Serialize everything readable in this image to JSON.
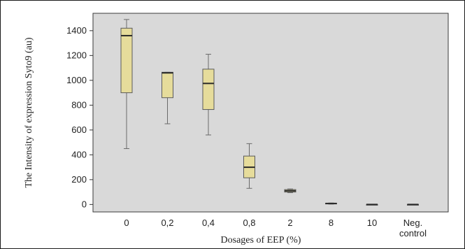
{
  "chart_data": {
    "type": "box",
    "title": "",
    "xlabel": "Dosages of EEP (%)",
    "ylabel": "The Intensity of expression  Syto9 (au)",
    "ylim": [
      -60,
      1540
    ],
    "yticks": [
      0,
      200,
      400,
      600,
      800,
      1000,
      1200,
      1400
    ],
    "grid": false,
    "plot_background": "#d9d9d9",
    "box_fill": "#e6dc9b",
    "box_stroke": "#5a5a5a",
    "median_color": "#2a2a2a",
    "categories": [
      {
        "label": "0",
        "label2": ""
      },
      {
        "label": "0,2",
        "label2": ""
      },
      {
        "label": "0,4",
        "label2": ""
      },
      {
        "label": "0,8",
        "label2": ""
      },
      {
        "label": "2",
        "label2": ""
      },
      {
        "label": "8",
        "label2": ""
      },
      {
        "label": "10",
        "label2": ""
      },
      {
        "label": "Neg.",
        "label2": "control"
      }
    ],
    "boxes": [
      {
        "min": 450,
        "q1": 900,
        "median": 1360,
        "q3": 1420,
        "max": 1490
      },
      {
        "min": 650,
        "q1": 860,
        "median": 1060,
        "q3": 1065,
        "max": 1065
      },
      {
        "min": 560,
        "q1": 765,
        "median": 975,
        "q3": 1090,
        "max": 1210
      },
      {
        "min": 130,
        "q1": 215,
        "median": 300,
        "q3": 390,
        "max": 490
      },
      {
        "min": 95,
        "q1": 100,
        "median": 110,
        "q3": 120,
        "max": 125
      },
      {
        "min": 3,
        "q1": 5,
        "median": 8,
        "q3": 10,
        "max": 12
      },
      {
        "min": 0,
        "q1": 0,
        "median": 0,
        "q3": 0,
        "max": 0
      },
      {
        "min": 0,
        "q1": 0,
        "median": 0,
        "q3": 0,
        "max": 0
      }
    ]
  }
}
